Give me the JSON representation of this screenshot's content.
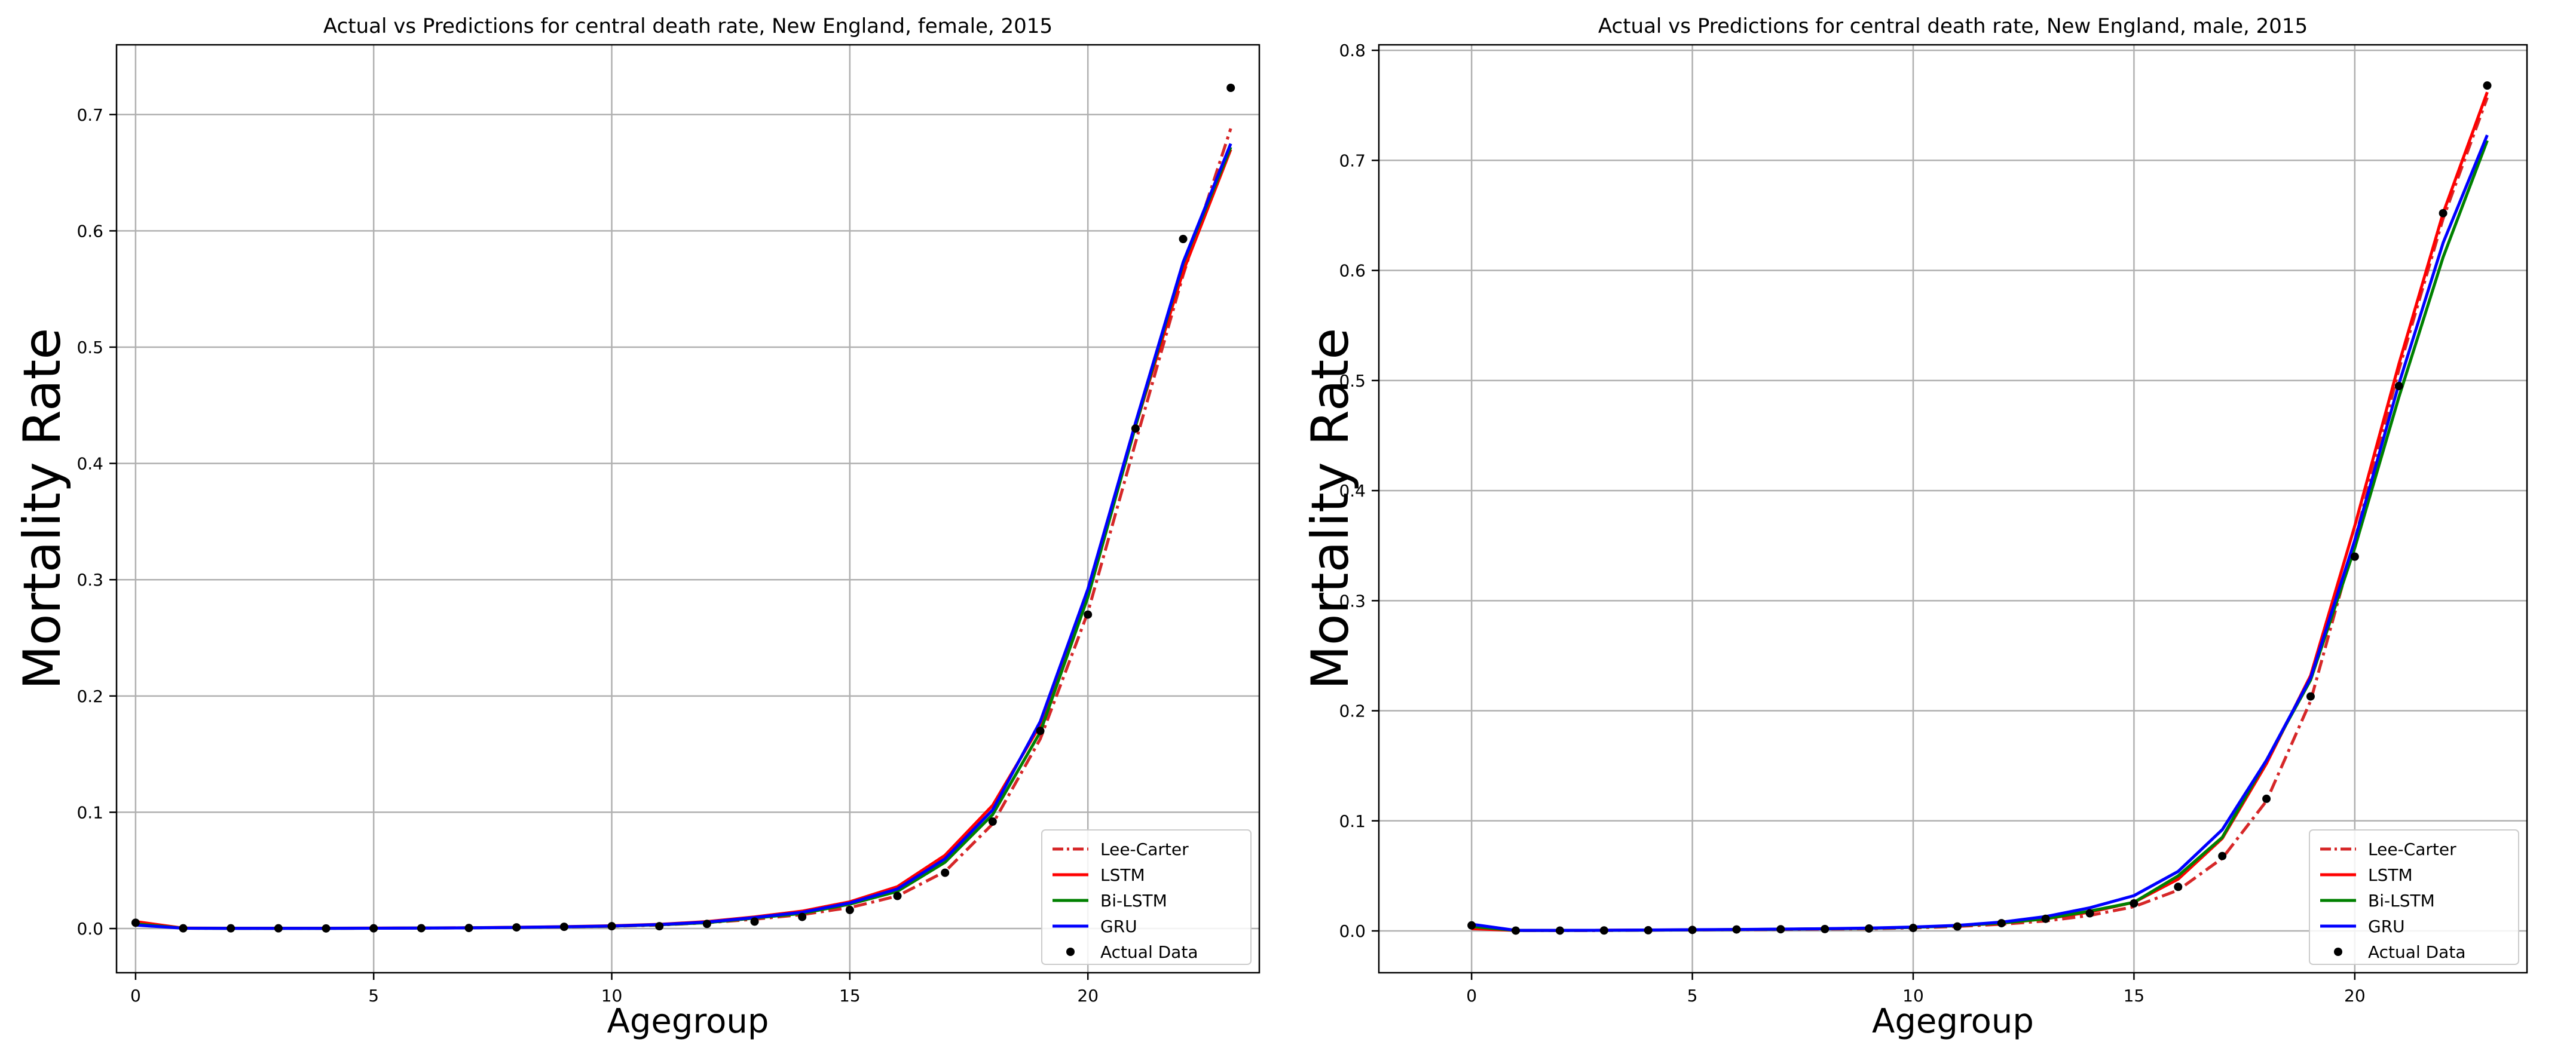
{
  "chart_data": [
    {
      "type": "line",
      "title": "Actual vs Predictions for central death rate, New England, female, 2015",
      "xlabel": "Agegroup",
      "ylabel": "Mortality Rate",
      "xlim": [
        -0.4,
        23.6
      ],
      "ylim": [
        -0.038,
        0.76
      ],
      "xticks": [
        0,
        5,
        10,
        15,
        20
      ],
      "yticks": [
        0.0,
        0.1,
        0.2,
        0.3,
        0.4,
        0.5,
        0.6,
        0.7
      ],
      "ytick_labels": [
        "0.0",
        "0.1",
        "0.2",
        "0.3",
        "0.4",
        "0.5",
        "0.6",
        "0.7"
      ],
      "grid": true,
      "legend_position": "bottom-right",
      "x": [
        0,
        1,
        2,
        3,
        4,
        5,
        6,
        7,
        8,
        9,
        10,
        11,
        12,
        13,
        14,
        15,
        16,
        17,
        18,
        19,
        20,
        21,
        22,
        23
      ],
      "series": [
        {
          "name": "Lee-Carter",
          "style": "dashdot",
          "color": "#d62728",
          "values": [
            0.005,
            0.0003,
            0.0002,
            0.0002,
            0.0002,
            0.0003,
            0.0004,
            0.0006,
            0.0009,
            0.0013,
            0.002,
            0.003,
            0.005,
            0.008,
            0.012,
            0.018,
            0.028,
            0.049,
            0.09,
            0.163,
            0.272,
            0.418,
            0.562,
            0.688
          ]
        },
        {
          "name": "LSTM",
          "style": "solid",
          "color": "#ff0000",
          "values": [
            0.006,
            0.0004,
            0.0003,
            0.0003,
            0.0003,
            0.0004,
            0.0005,
            0.0007,
            0.0011,
            0.0016,
            0.0024,
            0.0036,
            0.006,
            0.01,
            0.015,
            0.023,
            0.036,
            0.063,
            0.106,
            0.175,
            0.29,
            0.432,
            0.565,
            0.67
          ]
        },
        {
          "name": "Bi-LSTM",
          "style": "solid",
          "color": "#008000",
          "values": [
            0.004,
            0.0003,
            0.0002,
            0.0002,
            0.0002,
            0.0003,
            0.0004,
            0.0006,
            0.0009,
            0.0014,
            0.0021,
            0.0032,
            0.005,
            0.009,
            0.013,
            0.021,
            0.032,
            0.057,
            0.098,
            0.169,
            0.285,
            0.432,
            0.572,
            0.672
          ]
        },
        {
          "name": "GRU",
          "style": "solid",
          "color": "#0000ff",
          "values": [
            0.003,
            0.0003,
            0.0002,
            0.0002,
            0.0002,
            0.0003,
            0.0004,
            0.0006,
            0.001,
            0.0015,
            0.0022,
            0.0034,
            0.0055,
            0.0095,
            0.014,
            0.022,
            0.034,
            0.06,
            0.102,
            0.178,
            0.292,
            0.435,
            0.573,
            0.675
          ]
        },
        {
          "name": "Actual Data",
          "style": "scatter",
          "color": "#000000",
          "values": [
            0.005,
            0.0002,
            0.0002,
            0.0002,
            0.0001,
            0.0002,
            0.0003,
            0.0005,
            0.001,
            0.0015,
            0.002,
            0.002,
            0.004,
            0.006,
            0.01,
            0.016,
            0.028,
            0.048,
            0.092,
            0.17,
            0.27,
            0.43,
            0.593,
            0.723
          ]
        }
      ]
    },
    {
      "type": "line",
      "title": "Actual vs Predictions for central death rate, New England, male, 2015",
      "xlabel": "Agegroup",
      "ylabel": "Mortality Rate",
      "xlim": [
        -2.1,
        23.9
      ],
      "ylim": [
        -0.038,
        0.805
      ],
      "xticks": [
        0,
        5,
        10,
        15,
        20
      ],
      "yticks": [
        0.0,
        0.1,
        0.2,
        0.3,
        0.4,
        0.5,
        0.6,
        0.7,
        0.8
      ],
      "ytick_labels": [
        "0.0",
        "0.1",
        "0.2",
        "0.3",
        "0.4",
        "0.5",
        "0.6",
        "0.7",
        "0.8"
      ],
      "grid": true,
      "legend_position": "bottom-right",
      "x": [
        0,
        1,
        2,
        3,
        4,
        5,
        6,
        7,
        8,
        9,
        10,
        11,
        12,
        13,
        14,
        15,
        16,
        17,
        18,
        19,
        20,
        21,
        22,
        23
      ],
      "series": [
        {
          "name": "Lee-Carter",
          "style": "dashdot",
          "color": "#d62728",
          "values": [
            0.004,
            0.0003,
            0.0003,
            0.0004,
            0.0006,
            0.0009,
            0.0011,
            0.0013,
            0.0016,
            0.002,
            0.0027,
            0.004,
            0.006,
            0.009,
            0.014,
            0.022,
            0.037,
            0.066,
            0.118,
            0.209,
            0.355,
            0.51,
            0.647,
            0.757
          ]
        },
        {
          "name": "LSTM",
          "style": "solid",
          "color": "#ff0000",
          "values": [
            0.002,
            0.0004,
            0.0005,
            0.0006,
            0.0008,
            0.001,
            0.0012,
            0.0015,
            0.0019,
            0.0024,
            0.0032,
            0.0047,
            0.007,
            0.011,
            0.017,
            0.026,
            0.047,
            0.084,
            0.152,
            0.232,
            0.368,
            0.515,
            0.652,
            0.762
          ]
        },
        {
          "name": "Bi-LSTM",
          "style": "solid",
          "color": "#008000",
          "values": [
            0.004,
            0.0004,
            0.0004,
            0.0005,
            0.0007,
            0.001,
            0.0012,
            0.0015,
            0.0019,
            0.0024,
            0.0032,
            0.0047,
            0.0072,
            0.011,
            0.018,
            0.026,
            0.05,
            0.085,
            0.155,
            0.228,
            0.348,
            0.485,
            0.612,
            0.718
          ]
        },
        {
          "name": "GRU",
          "style": "solid",
          "color": "#0000ff",
          "values": [
            0.006,
            0.0005,
            0.0005,
            0.0006,
            0.0008,
            0.0011,
            0.0013,
            0.0016,
            0.002,
            0.0026,
            0.0035,
            0.005,
            0.008,
            0.013,
            0.021,
            0.032,
            0.054,
            0.092,
            0.155,
            0.23,
            0.355,
            0.497,
            0.625,
            0.723
          ]
        },
        {
          "name": "Actual Data",
          "style": "scatter",
          "color": "#000000",
          "values": [
            0.005,
            0.0003,
            0.0003,
            0.0004,
            0.0006,
            0.0009,
            0.0013,
            0.0015,
            0.0017,
            0.0022,
            0.0027,
            0.004,
            0.007,
            0.011,
            0.016,
            0.025,
            0.04,
            0.068,
            0.12,
            0.213,
            0.34,
            0.495,
            0.652,
            0.768
          ]
        }
      ]
    }
  ]
}
